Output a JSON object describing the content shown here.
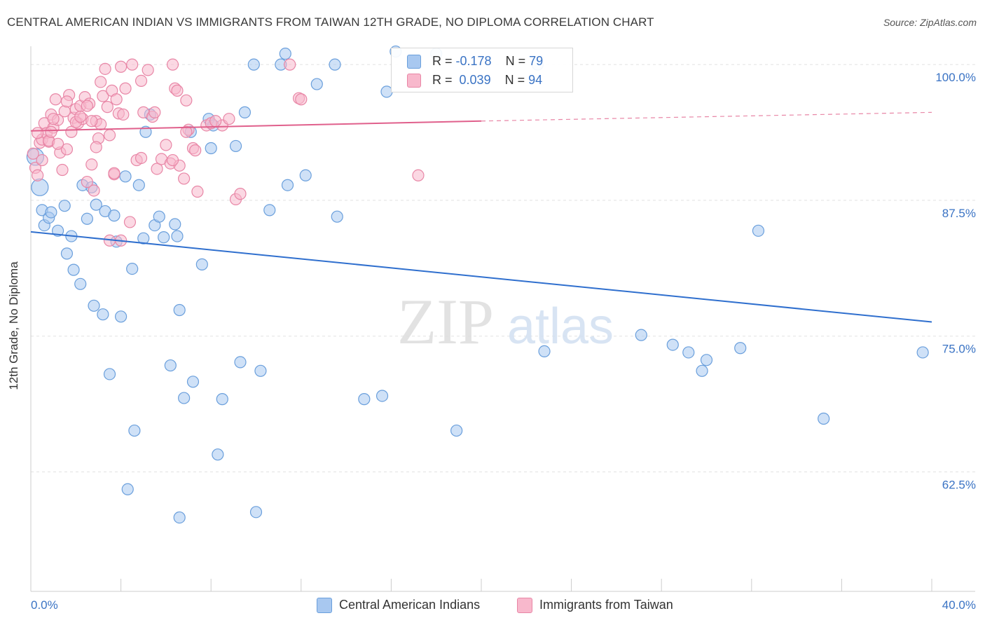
{
  "title": "CENTRAL AMERICAN INDIAN VS IMMIGRANTS FROM TAIWAN 12TH GRADE, NO DIPLOMA CORRELATION CHART",
  "source": "Source: ZipAtlas.com",
  "watermark": {
    "zip": "ZIP",
    "atlas": "atlas"
  },
  "legend": {
    "r_label": "R =",
    "n_label": "N =",
    "rows": [
      {
        "r": "-0.178",
        "n": "79",
        "color": "#a8c8f0",
        "border": "#6a9fdc"
      },
      {
        "r": "0.039",
        "n": "94",
        "color": "#f8b8cc",
        "border": "#e886a6"
      }
    ]
  },
  "chart_data": {
    "type": "scatter",
    "title": "CENTRAL AMERICAN INDIAN VS IMMIGRANTS FROM TAIWAN 12TH GRADE, NO DIPLOMA CORRELATION CHART",
    "xlabel": "",
    "ylabel": "12th Grade, No Diploma",
    "xlim": [
      0,
      40
    ],
    "ylim": [
      51.5,
      101.3
    ],
    "x_tick_labels": [
      "0.0%",
      "40.0%"
    ],
    "y_ticks": [
      62.5,
      75.0,
      87.5,
      100.0
    ],
    "y_tick_labels": [
      "62.5%",
      "75.0%",
      "87.5%",
      "100.0%"
    ],
    "grid": "horizontal dashed",
    "legend_position": "top-center",
    "series": [
      {
        "name": "Central American Indians",
        "color": "#6a9fdc",
        "fill": "#a8c8f0",
        "trend": {
          "x": [
            0,
            40
          ],
          "y": [
            84.6,
            76.3
          ],
          "style": "solid"
        },
        "points": [
          [
            0.2,
            91.5
          ],
          [
            0.4,
            88.7
          ],
          [
            0.5,
            86.6
          ],
          [
            0.6,
            85.2
          ],
          [
            0.8,
            85.9
          ],
          [
            0.9,
            86.4
          ],
          [
            1.2,
            84.7
          ],
          [
            1.5,
            87.0
          ],
          [
            1.6,
            82.6
          ],
          [
            1.8,
            84.2
          ],
          [
            1.9,
            81.1
          ],
          [
            2.2,
            79.8
          ],
          [
            2.3,
            88.9
          ],
          [
            2.5,
            85.8
          ],
          [
            2.7,
            88.7
          ],
          [
            2.8,
            77.8
          ],
          [
            2.9,
            87.1
          ],
          [
            3.2,
            77.0
          ],
          [
            3.3,
            86.5
          ],
          [
            3.5,
            71.5
          ],
          [
            3.7,
            86.1
          ],
          [
            3.8,
            83.7
          ],
          [
            4.0,
            76.8
          ],
          [
            4.2,
            89.7
          ],
          [
            4.5,
            81.2
          ],
          [
            4.6,
            66.3
          ],
          [
            4.8,
            88.9
          ],
          [
            5.0,
            84.0
          ],
          [
            5.1,
            93.8
          ],
          [
            5.3,
            95.4
          ],
          [
            5.5,
            85.2
          ],
          [
            5.7,
            86.0
          ],
          [
            5.9,
            84.1
          ],
          [
            6.2,
            72.3
          ],
          [
            6.4,
            85.3
          ],
          [
            6.5,
            84.2
          ],
          [
            6.6,
            77.4
          ],
          [
            6.8,
            69.3
          ],
          [
            7.1,
            93.8
          ],
          [
            7.2,
            70.8
          ],
          [
            7.6,
            81.6
          ],
          [
            7.9,
            95.0
          ],
          [
            8.0,
            92.3
          ],
          [
            8.3,
            64.1
          ],
          [
            8.5,
            69.2
          ],
          [
            8.1,
            94.4
          ],
          [
            9.1,
            92.5
          ],
          [
            9.3,
            72.6
          ],
          [
            9.5,
            95.6
          ],
          [
            9.9,
            100.0
          ],
          [
            10.2,
            71.8
          ],
          [
            10.6,
            86.6
          ],
          [
            11.1,
            100.0
          ],
          [
            11.4,
            88.9
          ],
          [
            12.2,
            89.8
          ],
          [
            12.7,
            98.2
          ],
          [
            13.5,
            100.0
          ],
          [
            13.6,
            86.0
          ],
          [
            14.8,
            69.2
          ],
          [
            15.6,
            69.5
          ],
          [
            15.8,
            97.5
          ],
          [
            18.9,
            66.3
          ],
          [
            22.8,
            73.6
          ],
          [
            27.1,
            75.1
          ],
          [
            28.5,
            74.2
          ],
          [
            29.2,
            73.5
          ],
          [
            29.8,
            71.8
          ],
          [
            30.0,
            72.8
          ],
          [
            31.5,
            73.9
          ],
          [
            32.3,
            84.7
          ],
          [
            35.2,
            67.4
          ],
          [
            39.6,
            73.5
          ],
          [
            6.6,
            58.3
          ],
          [
            10.0,
            58.8
          ],
          [
            4.3,
            60.9
          ],
          [
            18.0,
            101.0
          ],
          [
            22.5,
            100.0
          ],
          [
            11.3,
            101.0
          ],
          [
            16.2,
            101.2
          ]
        ]
      },
      {
        "name": "Immigrants from Taiwan",
        "color": "#e886a6",
        "fill": "#f8b8cc",
        "trend": {
          "x": [
            0,
            20
          ],
          "y": [
            93.9,
            94.8
          ],
          "style": "solid",
          "dashed_extension": {
            "x": [
              20,
              40
            ],
            "y": [
              94.8,
              95.6
            ]
          }
        },
        "points": [
          [
            0.1,
            91.8
          ],
          [
            0.2,
            90.5
          ],
          [
            0.3,
            89.8
          ],
          [
            0.4,
            92.8
          ],
          [
            0.5,
            93.1
          ],
          [
            0.6,
            94.6
          ],
          [
            0.7,
            93.7
          ],
          [
            0.8,
            92.9
          ],
          [
            0.9,
            95.4
          ],
          [
            1.0,
            94.2
          ],
          [
            1.1,
            96.8
          ],
          [
            1.2,
            94.9
          ],
          [
            1.3,
            91.9
          ],
          [
            1.4,
            90.3
          ],
          [
            1.5,
            95.7
          ],
          [
            1.6,
            92.2
          ],
          [
            1.7,
            97.2
          ],
          [
            1.8,
            93.8
          ],
          [
            1.9,
            95.1
          ],
          [
            2.0,
            95.9
          ],
          [
            2.1,
            94.6
          ],
          [
            2.2,
            96.2
          ],
          [
            2.3,
            95.0
          ],
          [
            2.4,
            97.0
          ],
          [
            2.5,
            89.2
          ],
          [
            2.6,
            96.4
          ],
          [
            2.7,
            90.8
          ],
          [
            2.8,
            88.4
          ],
          [
            2.9,
            94.8
          ],
          [
            3.0,
            93.2
          ],
          [
            3.1,
            98.4
          ],
          [
            3.2,
            97.1
          ],
          [
            3.3,
            99.6
          ],
          [
            3.4,
            96.1
          ],
          [
            3.5,
            93.5
          ],
          [
            3.6,
            97.6
          ],
          [
            3.7,
            89.9
          ],
          [
            3.8,
            96.8
          ],
          [
            3.9,
            95.5
          ],
          [
            4.0,
            99.8
          ],
          [
            4.1,
            95.4
          ],
          [
            4.2,
            97.8
          ],
          [
            4.4,
            85.5
          ],
          [
            4.5,
            100.0
          ],
          [
            4.7,
            91.2
          ],
          [
            4.9,
            98.5
          ],
          [
            5.0,
            95.6
          ],
          [
            5.2,
            99.5
          ],
          [
            5.4,
            95.2
          ],
          [
            5.6,
            90.4
          ],
          [
            5.8,
            91.3
          ],
          [
            6.0,
            92.6
          ],
          [
            6.2,
            90.9
          ],
          [
            6.4,
            97.8
          ],
          [
            6.5,
            97.6
          ],
          [
            6.6,
            90.7
          ],
          [
            6.8,
            89.5
          ],
          [
            6.9,
            96.7
          ],
          [
            7.0,
            94.0
          ],
          [
            7.2,
            92.3
          ],
          [
            7.4,
            88.3
          ],
          [
            7.8,
            94.4
          ],
          [
            8.0,
            94.6
          ],
          [
            8.5,
            94.4
          ],
          [
            8.8,
            95.0
          ],
          [
            9.1,
            87.6
          ],
          [
            9.3,
            88.1
          ],
          [
            3.5,
            83.8
          ],
          [
            11.9,
            96.9
          ],
          [
            12.0,
            96.8
          ],
          [
            17.2,
            89.8
          ],
          [
            0.3,
            93.7
          ],
          [
            0.8,
            93.0
          ],
          [
            1.0,
            95.0
          ],
          [
            2.0,
            94.7
          ],
          [
            2.5,
            96.2
          ],
          [
            3.1,
            94.5
          ],
          [
            4.0,
            83.8
          ],
          [
            5.5,
            95.6
          ],
          [
            6.3,
            91.2
          ],
          [
            7.3,
            92.1
          ],
          [
            8.2,
            94.8
          ],
          [
            1.6,
            96.6
          ],
          [
            2.9,
            92.4
          ],
          [
            3.7,
            90.0
          ],
          [
            0.5,
            91.2
          ],
          [
            1.2,
            92.7
          ],
          [
            2.2,
            95.2
          ],
          [
            6.3,
            100.0
          ],
          [
            11.5,
            100.0
          ],
          [
            4.9,
            91.4
          ],
          [
            0.9,
            93.8
          ],
          [
            6.9,
            93.8
          ],
          [
            2.7,
            94.8
          ]
        ]
      }
    ]
  },
  "bottom_legend": [
    {
      "label": "Central American Indians",
      "color": "#a8c8f0",
      "border": "#6a9fdc"
    },
    {
      "label": "Immigrants from Taiwan",
      "color": "#f8b8cc",
      "border": "#e886a6"
    }
  ]
}
